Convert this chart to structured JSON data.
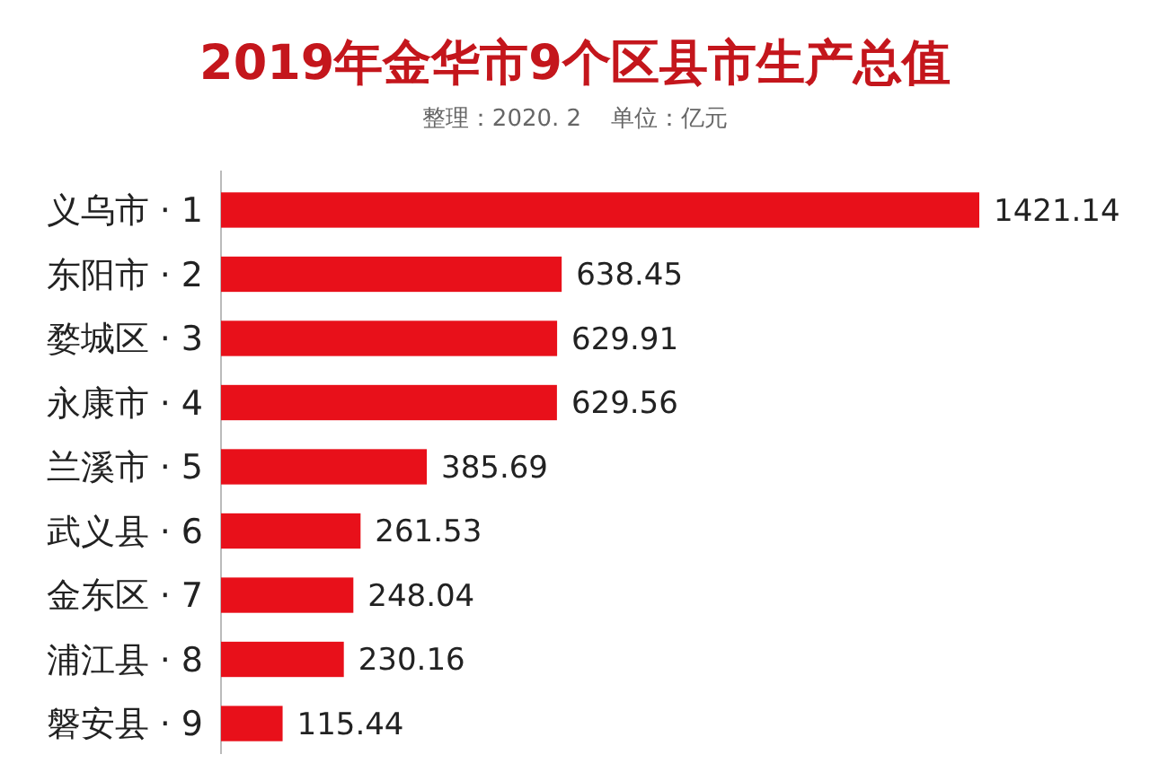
{
  "chart_data": {
    "type": "bar",
    "orientation": "horizontal",
    "title": "2019年金华市9个区县市生产总值",
    "subtitle": "整理：2020. 2    单位：亿元",
    "categories": [
      "义乌市 · 1",
      "东阳市 · 2",
      "婺城区 · 3",
      "永康市 · 4",
      "兰溪市 · 5",
      "武义县 · 6",
      "金东区 · 7",
      "浦江县 · 8",
      "磐安县 · 9"
    ],
    "values": [
      1421.14,
      638.45,
      629.91,
      629.56,
      385.69,
      261.53,
      248.04,
      230.16,
      115.44
    ],
    "color": "#e8101a",
    "data_labels": true
  }
}
